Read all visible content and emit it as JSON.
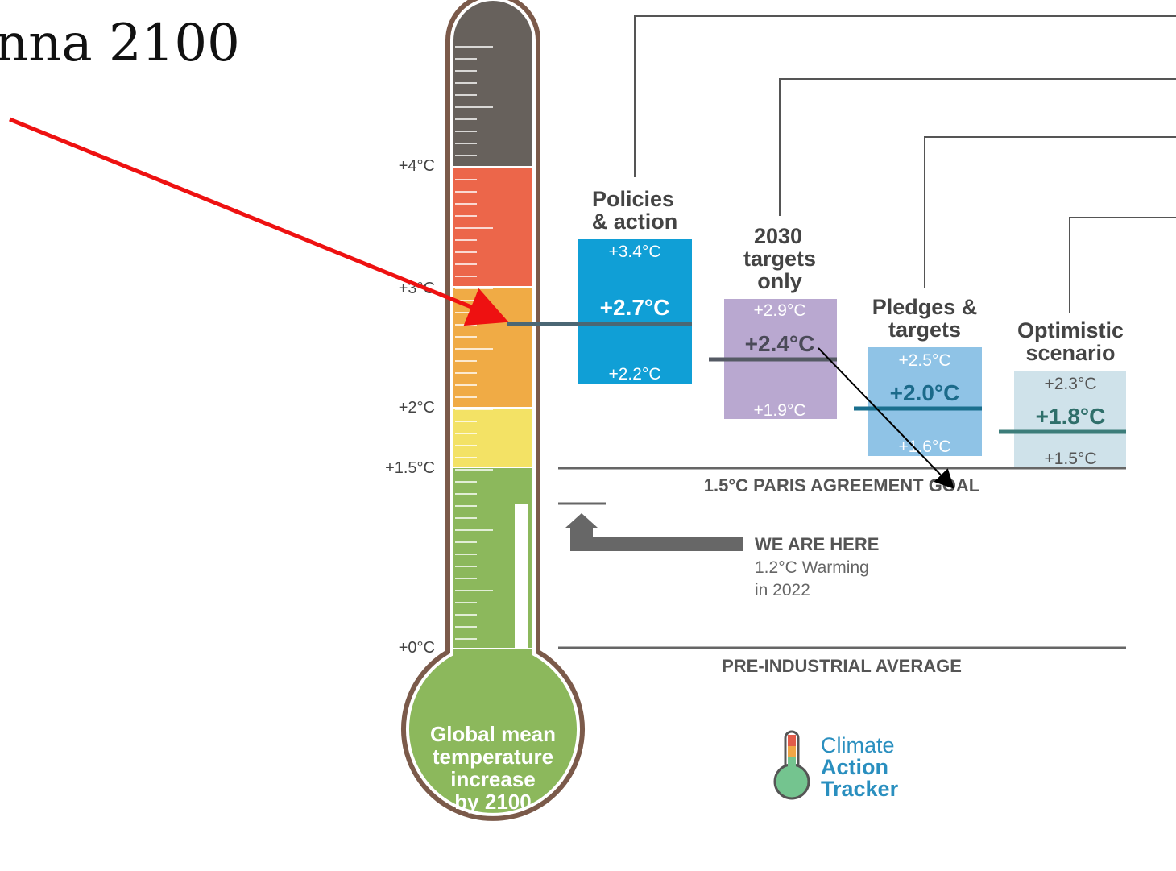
{
  "header": {
    "title_fragment": "nna 2100"
  },
  "thermometer": {
    "bulb_text": [
      "Global mean",
      "temperature",
      "increase",
      "by 2100"
    ],
    "scale_labels": [
      "+4°C",
      "+3°C",
      "+2°C",
      "+1.5°C",
      "+0°C"
    ],
    "colors": {
      "frame": "#7b5a4a",
      "gray": "#67615c",
      "red": "#ec664a",
      "orange": "#f0ab45",
      "yellow": "#f3e265",
      "green": "#8cb85c"
    }
  },
  "scenarios": [
    {
      "label": [
        "Policies",
        "& action"
      ],
      "high": "+3.4°C",
      "mid": "+2.7°C",
      "low": "+2.2°C",
      "color": "#109fd6"
    },
    {
      "label": [
        "2030",
        "targets",
        "only"
      ],
      "high": "+2.9°C",
      "mid": "+2.4°C",
      "low": "+1.9°C",
      "color": "#b9a8d0"
    },
    {
      "label": [
        "Pledges &",
        "targets"
      ],
      "high": "+2.5°C",
      "mid": "+2.0°C",
      "low": "+1.6°C",
      "color": "#8fc3e6"
    },
    {
      "label": [
        "Optimistic",
        "scenario"
      ],
      "high": "+2.3°C",
      "mid": "+1.8°C",
      "low": "+1.5°C",
      "color": "#cfe2ea"
    }
  ],
  "reference_lines": {
    "paris": "1.5°C PARIS AGREEMENT GOAL",
    "preindustrial": "PRE-INDUSTRIAL AVERAGE"
  },
  "we_are_here": {
    "title": "WE ARE HERE",
    "line1": "1.2°C Warming",
    "line2": "in 2022"
  },
  "logo": {
    "line1": "Climate",
    "line2": "Action",
    "line3": "Tracker"
  },
  "annotations": {
    "red_arrow_color": "#ee1111",
    "black_arrow_color": "#000000"
  }
}
